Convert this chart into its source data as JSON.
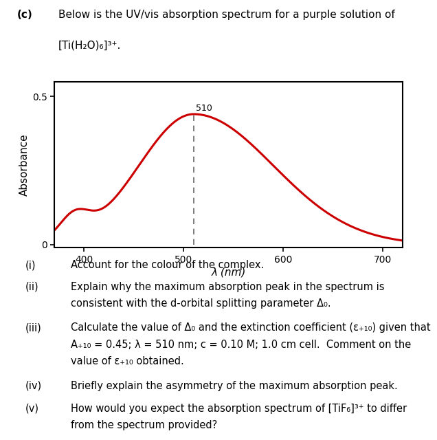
{
  "header_label": "(c)",
  "header_text_line1": "Below is the UV/vis absorption spectrum for a purple solution of",
  "header_text_line2": "[Ti(H₂O)₆]³⁺.",
  "xlabel": "λ (nm)",
  "ylabel": "Absorbance",
  "xlim": [
    370,
    720
  ],
  "ylim": [
    -0.01,
    0.55
  ],
  "xticks": [
    400,
    500,
    600,
    700
  ],
  "ytick_vals": [
    0,
    0.5
  ],
  "ytick_labels": [
    "0",
    "0.5"
  ],
  "curve_color": "#cc0000",
  "dashed_color": "#666666",
  "peak_wl": 510,
  "peak_label": "510",
  "bg": "#ffffff",
  "font_size_header": 11,
  "font_size_axis": 10,
  "font_size_questions": 10.5,
  "q_nums": [
    "(i)",
    "(ii)",
    "(iii)",
    "(iv)",
    "(v)"
  ],
  "q_line1": [
    "Account for the colour of the complex.",
    "Explain why the maximum absorption peak in the spectrum is",
    "Calculate the value of Δ₀ and the extinction coefficient (ε510) given that",
    "Briefly explain the asymmetry of the maximum absorption peak.",
    "How would you expect the absorption spectrum of [TiF₆]³⁺ to differ"
  ],
  "q_line2": [
    "",
    "consistent with the d-orbital splitting parameter Δ₀.",
    "A510 = 0.45; λ = 510 nm; c = 0.10 M; 1.0 cm cell.  Comment on the",
    "",
    "from the spectrum provided?"
  ],
  "q_line3": [
    "",
    "",
    "value of ε510 obtained.",
    "",
    ""
  ]
}
